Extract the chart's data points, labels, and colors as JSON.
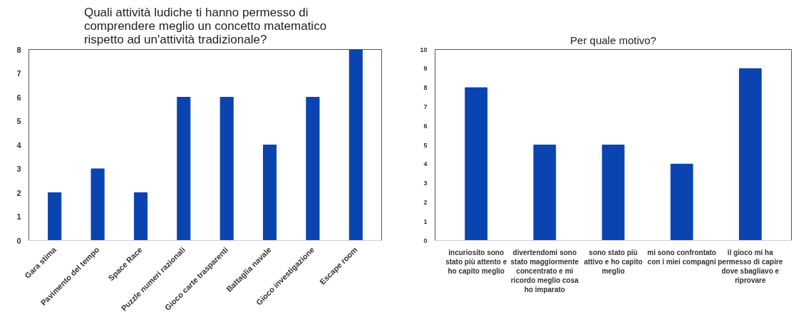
{
  "chart_data": [
    {
      "type": "bar",
      "title": "Quali attività ludiche ti hanno permesso di comprendere meglio un concetto matematico rispetto ad un'attività tradizionale?",
      "categories": [
        "Gara stima",
        "Pavimento del tempo",
        "Space Race",
        "Puzzle numeri razionali",
        "Gioco carte trasparenti",
        "Battaglia navale",
        "Gioco investigazione",
        "Escape room"
      ],
      "values": [
        2,
        3,
        2,
        6,
        6,
        4,
        6,
        8
      ],
      "color": "#0a44b0",
      "ylim": [
        0,
        8
      ],
      "yticks": [
        0,
        1,
        2,
        3,
        4,
        5,
        6,
        7,
        8
      ],
      "grid": false
    },
    {
      "type": "bar",
      "title": "Per quale motivo?",
      "categories": [
        "incuriosito sono stato più attento e ho capito meglio",
        "divertendomi sono stato maggiormente concentrato e mi ricordo meglio cosa ho imparato",
        "sono stato più attivo e ho capito meglio",
        "mi sono confrontato con i miei compagni",
        "il gioco mi ha permesso di capire dove sbagliavo e riprovare"
      ],
      "values": [
        8,
        5,
        5,
        4,
        9
      ],
      "color": "#0a44b0",
      "ylim": [
        0,
        10
      ],
      "yticks": [
        0,
        1,
        2,
        3,
        4,
        5,
        6,
        7,
        8,
        9,
        10
      ],
      "grid": false
    }
  ]
}
